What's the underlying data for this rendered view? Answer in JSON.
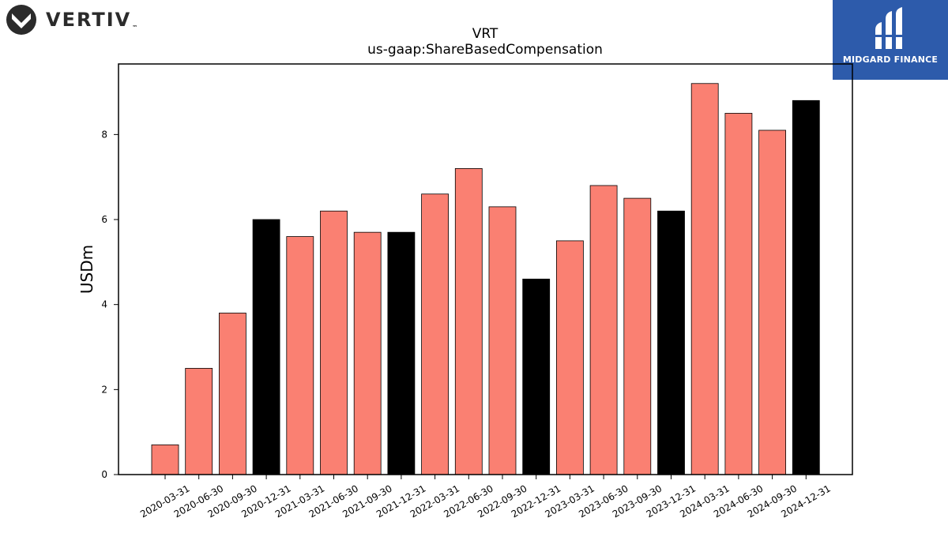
{
  "logos": {
    "left_brand": "VERTIV",
    "left_brand_tm": "™",
    "right_brand": "MIDGARD FINANCE"
  },
  "colors": {
    "regular_bar": "#fa8072",
    "year_end_bar": "#000000",
    "midgard_bg": "#2d5bab"
  },
  "chart_data": {
    "type": "bar",
    "title": "VRT",
    "subtitle": "us-gaap:ShareBasedCompensation",
    "xlabel": "",
    "ylabel": "USDm",
    "ylim": [
      0,
      9.66
    ],
    "yticks": [
      0,
      2,
      4,
      6,
      8
    ],
    "grid": false,
    "categories": [
      "2020-03-31",
      "2020-06-30",
      "2020-09-30",
      "2020-12-31",
      "2021-03-31",
      "2021-06-30",
      "2021-09-30",
      "2021-12-31",
      "2022-03-31",
      "2022-06-30",
      "2022-09-30",
      "2022-12-31",
      "2023-03-31",
      "2023-06-30",
      "2023-09-30",
      "2023-12-31",
      "2024-03-31",
      "2024-06-30",
      "2024-09-30",
      "2024-12-31"
    ],
    "values": [
      0.7,
      2.5,
      3.8,
      6.0,
      5.6,
      6.2,
      5.7,
      5.7,
      6.6,
      7.2,
      6.3,
      4.6,
      5.5,
      6.8,
      6.5,
      6.2,
      9.2,
      8.5,
      8.1,
      8.8
    ],
    "year_end": [
      false,
      false,
      false,
      true,
      false,
      false,
      false,
      true,
      false,
      false,
      false,
      true,
      false,
      false,
      false,
      true,
      false,
      false,
      false,
      true
    ]
  }
}
